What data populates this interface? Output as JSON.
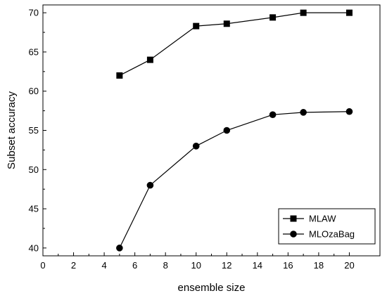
{
  "chart_data": {
    "type": "line",
    "title": "",
    "xlabel": "ensemble size",
    "ylabel": "Subset accuracy",
    "xlim": [
      0,
      22
    ],
    "ylim": [
      39,
      71
    ],
    "xticks": [
      0,
      2,
      4,
      6,
      8,
      10,
      12,
      14,
      16,
      18,
      20
    ],
    "yticks": [
      40,
      45,
      50,
      55,
      60,
      65,
      70
    ],
    "grid": false,
    "legend": "bottom-right",
    "x": [
      5,
      7,
      10,
      12,
      15,
      17,
      20
    ],
    "series": [
      {
        "name": "MLAW",
        "marker": "square",
        "color": "#000000",
        "values": [
          62.0,
          64.0,
          68.3,
          68.6,
          69.4,
          70.0,
          70.0
        ]
      },
      {
        "name": "MLOzaBag",
        "marker": "circle",
        "color": "#000000",
        "values": [
          40.0,
          48.0,
          53.0,
          55.0,
          57.0,
          57.3,
          57.4
        ]
      }
    ]
  }
}
